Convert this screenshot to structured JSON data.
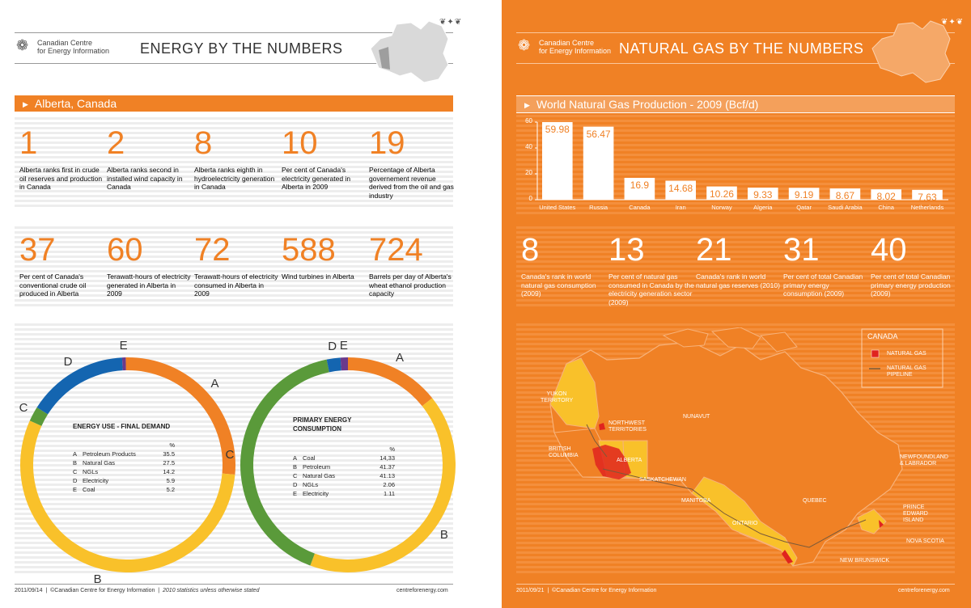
{
  "left": {
    "flag": "❦✦❦",
    "org_line1": "Canadian Centre",
    "org_line2": "for Energy Information",
    "title": "ENERGY BY THE NUMBERS",
    "section": "Alberta, Canada",
    "stats": [
      {
        "num": "1",
        "desc": "Alberta ranks first in crude oil reserves and production in Canada"
      },
      {
        "num": "2",
        "desc": "Alberta ranks second in installed wind capacity in Canada"
      },
      {
        "num": "8",
        "desc": "Alberta ranks eighth in hydroelectricity generation in Canada"
      },
      {
        "num": "10",
        "desc": "Per cent of Canada's electricity generated in Alberta in 2009"
      },
      {
        "num": "19",
        "desc": "Percentage of Alberta governement revenue derived from the oil and gas industry"
      },
      {
        "num": "37",
        "desc": "Per cent of Canada's conventional crude oil produced in Alberta"
      },
      {
        "num": "60",
        "desc": "Terawatt-hours of electricity generated in Alberta in 2009"
      },
      {
        "num": "72",
        "desc": "Terawatt-hours of electricity consumed in Alberta in 2009"
      },
      {
        "num": "588",
        "desc": "Wind turbines in Alberta"
      },
      {
        "num": "724",
        "desc": "Barrels per day of Alberta's wheat ethanol production capacity"
      }
    ],
    "footer_date": "2011/09/14",
    "footer_copy": "©Canadian Centre for Energy Information",
    "footer_note": "2010 statistics unless otherwise stated",
    "footer_url": "centreforenergy.com"
  },
  "right": {
    "flag": "❦✦❦",
    "org_line1": "Canadian Centre",
    "org_line2": "for Energy Information",
    "title": "NATURAL GAS BY THE NUMBERS",
    "section": "World Natural Gas Production - 2009 (Bcf/d)",
    "stats": [
      {
        "num": "8",
        "desc": "Canada's rank in world natural gas consumption (2009)"
      },
      {
        "num": "13",
        "desc": "Per cent of natural gas consumed in Canada by the electricity generation sector (2009)"
      },
      {
        "num": "21",
        "desc": "Canada's rank in world natural gas reserves (2010)"
      },
      {
        "num": "31",
        "desc": "Per cent of total Canadian primary energy consumption (2009)"
      },
      {
        "num": "40",
        "desc": "Per cent of total Canadian primary energy production (2009)"
      }
    ],
    "map": {
      "legend_title": "CANADA",
      "legend_gas": "NATURAL GAS",
      "legend_pipeline": "NATURAL GAS PIPELINE",
      "labels": {
        "yukon": "YUKON TERRITORY",
        "nwt": "NORTHWEST TERRITORIES",
        "nunavut": "NUNAVUT",
        "bc": "BRITISH COLUMBIA",
        "alberta": "ALBERTA",
        "sask": "SASKATCHEWAN",
        "manitoba": "MANITOBA",
        "ontario": "ONTARIO",
        "quebec": "QUEBEC",
        "nfld": "NEWFOUNDLAND & LABRADOR",
        "pei": "PRINCE EDWARD ISLAND",
        "ns": "NOVA SCOTIA",
        "nb": "NEW BRUNSWICK"
      }
    },
    "footer_date": "2011/09/21",
    "footer_copy": "©Canadian Centre for Energy Information",
    "footer_url": "centreforenergy.com"
  },
  "colors": {
    "orange": "#f08125",
    "yellow": "#f9c12a",
    "green": "#5a9a3a",
    "blue": "#1465b0",
    "purple": "#6b3a8c",
    "dark": "#333333"
  },
  "chart_data": [
    {
      "type": "pie",
      "title": "ENERGY USE - FINAL DEMAND",
      "unit": "%",
      "slices": [
        {
          "key": "A",
          "label": "Petroleum Products",
          "value": 35.5,
          "display": "35.5"
        },
        {
          "key": "B",
          "label": "Natural Gas",
          "value": 27.5,
          "display": "27.5"
        },
        {
          "key": "C",
          "label": "NGLs",
          "value": 14.2,
          "display": "14.2"
        },
        {
          "key": "D",
          "label": "Electricity",
          "value": 5.9,
          "display": "5.9"
        },
        {
          "key": "E",
          "label": "Coal",
          "value": 5.2,
          "display": "5.2"
        }
      ],
      "ring": [
        {
          "key": "A",
          "value": 30
        },
        {
          "key": "B",
          "value": 62
        },
        {
          "key": "C",
          "value": 2.5
        },
        {
          "key": "D",
          "value": 17
        },
        {
          "key": "E",
          "value": 0.6
        }
      ]
    },
    {
      "type": "pie",
      "title": "PRIMARY ENERGY CONSUMPTION",
      "unit": "%",
      "slices": [
        {
          "key": "A",
          "label": "Coal",
          "value": 14.33,
          "display": "14,33"
        },
        {
          "key": "B",
          "label": "Petroleum",
          "value": 41.37,
          "display": "41.37"
        },
        {
          "key": "C",
          "label": "Natural Gas",
          "value": 41.13,
          "display": "41.13"
        },
        {
          "key": "D",
          "label": "NGLs",
          "value": 2.06,
          "display": "2.06"
        },
        {
          "key": "E",
          "label": "Electricity",
          "value": 1.11,
          "display": "1.11"
        }
      ]
    },
    {
      "type": "bar",
      "title": "World Natural Gas Production - 2009 (Bcf/d)",
      "categories": [
        "United States",
        "Russia",
        "Canada",
        "Iran",
        "Norway",
        "Algeria",
        "Qatar",
        "Saudi Arabia",
        "China",
        "Netherlands"
      ],
      "values": [
        59.98,
        56.47,
        16.9,
        14.68,
        10.26,
        9.33,
        9.19,
        8.67,
        8.02,
        7.63
      ],
      "ylim": [
        0,
        60
      ],
      "yticks": [
        0,
        20,
        40,
        60
      ]
    }
  ]
}
